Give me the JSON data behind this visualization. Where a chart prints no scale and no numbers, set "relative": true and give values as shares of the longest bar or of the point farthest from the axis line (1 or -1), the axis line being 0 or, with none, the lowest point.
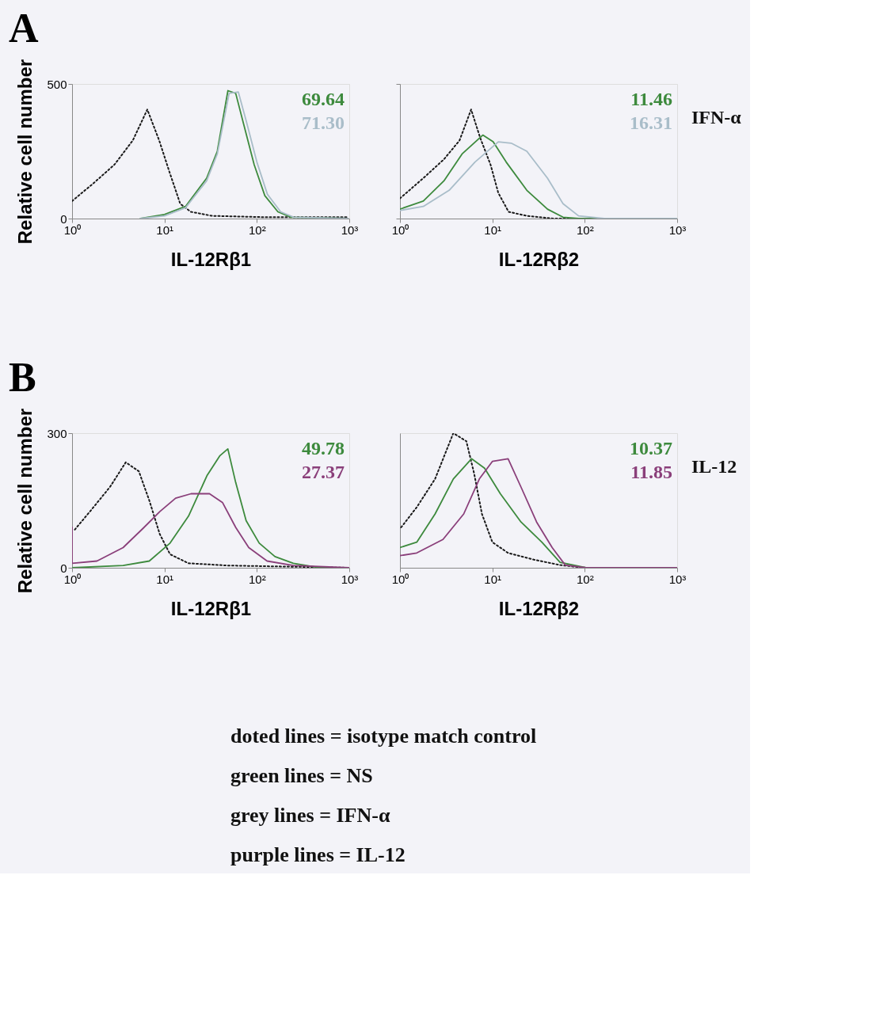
{
  "chart_data": [
    {
      "type": "line",
      "title": "A",
      "ylabel": "Relative cell number",
      "xlabel": "IL-12Rβ1",
      "log": "x",
      "xlim": [
        1,
        1000
      ],
      "ylim": [
        0,
        500
      ],
      "xticks": [
        {
          "value": 1,
          "label": "10⁰"
        },
        {
          "value": 10,
          "label": "10¹"
        },
        {
          "value": 100,
          "label": "10²"
        },
        {
          "value": 1000,
          "label": "10³"
        }
      ],
      "yticks": [
        0,
        500
      ],
      "annotations": [
        "69.64",
        "71.30"
      ],
      "series": [
        {
          "color": "#1a1a1a",
          "line_style": "dotted",
          "x": [
            1,
            1.69,
            2.87,
            4.54,
            6.52,
            8.77,
            11.4,
            14.8,
            19.3,
            32.7,
            122,
            968
          ],
          "values": [
            65,
            130,
            200,
            290,
            405,
            290,
            170,
            55,
            25,
            10,
            5,
            5
          ]
        },
        {
          "color": "#3d8a3d",
          "line_style": "solid",
          "x": [
            5.5,
            10,
            16.9,
            28.6,
            37.3,
            48.6,
            59,
            72,
            93.5,
            122,
            169,
            235,
            968
          ],
          "values": [
            0,
            15,
            45,
            150,
            250,
            475,
            465,
            350,
            200,
            85,
            25,
            5,
            0
          ]
        },
        {
          "color": "#a9bdc9",
          "line_style": "solid",
          "x": [
            5.5,
            10,
            16.9,
            28.6,
            37.3,
            50.1,
            63,
            77,
            100,
            130,
            181,
            251,
            968
          ],
          "values": [
            0,
            10,
            40,
            140,
            240,
            465,
            470,
            360,
            210,
            90,
            25,
            5,
            0
          ]
        }
      ]
    },
    {
      "type": "line",
      "xlabel": "IL-12Rβ2",
      "y2label": "IFN-α",
      "log": "x",
      "xlim": [
        1,
        1000
      ],
      "ylim": [
        0,
        500
      ],
      "tick_labels": "x",
      "xticks": [
        {
          "value": 1,
          "label": "10⁰"
        },
        {
          "value": 10,
          "label": "10¹"
        },
        {
          "value": 100,
          "label": "10²"
        },
        {
          "value": 1000,
          "label": "10³"
        }
      ],
      "yticks": [
        0,
        500
      ],
      "annotations": [
        "11.46",
        "16.31"
      ],
      "series": [
        {
          "color": "#1a1a1a",
          "line_style": "dotted",
          "x": [
            1,
            1.79,
            2.99,
            4.41,
            5.89,
            7.38,
            9.56,
            11.6,
            15,
            23.6,
            45,
            1000
          ],
          "values": [
            75,
            150,
            220,
            290,
            405,
            300,
            200,
            95,
            25,
            10,
            0,
            0
          ]
        },
        {
          "color": "#3d8a3d",
          "line_style": "solid",
          "x": [
            1,
            1.79,
            2.99,
            4.7,
            7.88,
            10.2,
            14.1,
            23.6,
            39.5,
            58.2,
            85.7,
            1000
          ],
          "values": [
            35,
            65,
            140,
            240,
            310,
            285,
            210,
            105,
            35,
            5,
            0,
            0
          ]
        },
        {
          "color": "#a9bdc9",
          "line_style": "solid",
          "x": [
            1,
            1.79,
            3.41,
            6.49,
            11.6,
            16,
            23.6,
            39.5,
            58.2,
            85.7,
            163,
            1000
          ],
          "values": [
            30,
            45,
            105,
            210,
            285,
            280,
            250,
            150,
            55,
            10,
            0,
            0
          ]
        }
      ]
    },
    {
      "type": "line",
      "title": "B",
      "ylabel": "Relative cell number",
      "xlabel": "IL-12Rβ1",
      "log": "x",
      "xlim": [
        1,
        1000
      ],
      "ylim": [
        0,
        300
      ],
      "xticks": [
        {
          "value": 1,
          "label": "10⁰"
        },
        {
          "value": 10,
          "label": "10¹"
        },
        {
          "value": 100,
          "label": "10²"
        },
        {
          "value": 1000,
          "label": "10³"
        }
      ],
      "yticks": [
        0,
        300
      ],
      "annotations": [
        "49.78",
        "27.37"
      ],
      "series": [
        {
          "color": "#1a1a1a",
          "line_style": "dotted",
          "x": [
            1.07,
            1.63,
            2.57,
            3.81,
            5.28,
            6.85,
            8.89,
            11.5,
            18.2,
            48.5,
            1000
          ],
          "values": [
            85,
            130,
            180,
            235,
            215,
            150,
            75,
            30,
            10,
            5,
            0
          ]
        },
        {
          "color": "#3d8a3d",
          "line_style": "solid",
          "x": [
            1,
            3.57,
            6.85,
            11.5,
            18.2,
            28.8,
            39.9,
            48.5,
            59,
            76.5,
            106,
            157,
            248,
            475,
            1000
          ],
          "values": [
            0,
            5,
            15,
            55,
            115,
            205,
            250,
            265,
            190,
            105,
            55,
            25,
            10,
            0,
            0
          ]
        },
        {
          "color": "#8a3f7a",
          "line_style": "solid",
          "x": [
            1,
            1,
            1.86,
            3.57,
            6.01,
            8.89,
            13.2,
            19.4,
            30.7,
            42.6,
            59,
            81.7,
            129,
            248,
            1000
          ],
          "values": [
            90,
            10,
            15,
            45,
            90,
            125,
            155,
            165,
            165,
            145,
            90,
            45,
            15,
            5,
            0
          ]
        }
      ]
    },
    {
      "type": "line",
      "xlabel": "IL-12Rβ2",
      "y2label": "IL-12",
      "log": "x",
      "xlim": [
        1,
        1000
      ],
      "relative": true,
      "tick_labels": "x",
      "xticks": [
        {
          "value": 1,
          "label": "10⁰"
        },
        {
          "value": 10,
          "label": "10¹"
        },
        {
          "value": 100,
          "label": "10²"
        },
        {
          "value": 1000,
          "label": "10³"
        }
      ],
      "annotations": [
        "10.37",
        "11.85"
      ],
      "series": [
        {
          "color": "#1a1a1a",
          "line_style": "dotted",
          "x": [
            1.03,
            1.52,
            2.4,
            3.78,
            5.23,
            6.35,
            7.71,
            10,
            14.8,
            28.2,
            54,
            103,
            1000
          ],
          "values": [
            0.3,
            0.45,
            0.66,
            1,
            0.94,
            0.7,
            0.4,
            0.19,
            0.11,
            0.06,
            0.02,
            0,
            0
          ]
        },
        {
          "color": "#3d8a3d",
          "line_style": "solid",
          "x": [
            1,
            1.52,
            2.4,
            3.78,
            5.95,
            8.23,
            12.2,
            20.4,
            34.3,
            54,
            103,
            1000
          ],
          "values": [
            0.15,
            0.19,
            0.4,
            0.66,
            0.81,
            0.74,
            0.55,
            0.34,
            0.19,
            0.04,
            0,
            0
          ]
        },
        {
          "color": "#8a3f7a",
          "line_style": "solid",
          "x": [
            1,
            1.52,
            2.92,
            4.9,
            7.23,
            10,
            14.8,
            20.4,
            30.1,
            44.4,
            61.5,
            103,
            1000
          ],
          "values": [
            0.09,
            0.11,
            0.21,
            0.4,
            0.66,
            0.79,
            0.81,
            0.6,
            0.34,
            0.15,
            0.02,
            0,
            0
          ]
        }
      ]
    },
    {
      "type": "other",
      "annotations": [
        "doted lines = isotype match control",
        "green lines = NS",
        "grey lines = IFN-α",
        "purple lines = IL-12"
      ]
    }
  ]
}
